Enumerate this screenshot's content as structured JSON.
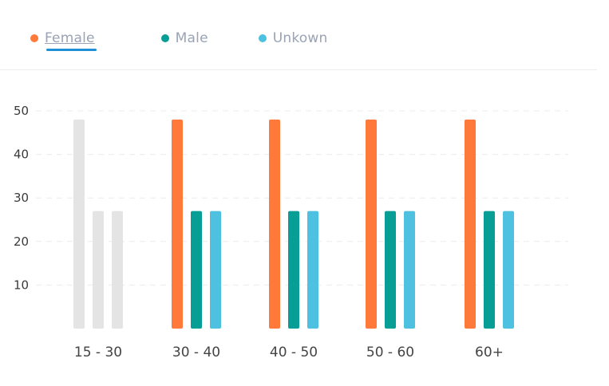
{
  "legend": {
    "items": [
      {
        "label": "Female",
        "color": "#ff7a3a",
        "active": true
      },
      {
        "label": "Male",
        "color": "#079e95",
        "active": false
      },
      {
        "label": "Unkown",
        "color": "#4ec0e0",
        "active": false
      }
    ]
  },
  "chart_data": {
    "type": "bar",
    "categories": [
      "15 - 30",
      "30 - 40",
      "40 - 50",
      "50 - 60",
      "60+"
    ],
    "series": [
      {
        "name": "Female",
        "color": "#ff7a3a",
        "values": [
          48,
          48,
          48,
          48,
          48
        ]
      },
      {
        "name": "Male",
        "color": "#079e95",
        "values": [
          27,
          27,
          27,
          27,
          27
        ]
      },
      {
        "name": "Unkown",
        "color": "#4ec0e0",
        "values": [
          27,
          27,
          27,
          27,
          27
        ]
      }
    ],
    "highlighted_category_index": 0,
    "highlight_color": "#e4e4e4",
    "yticks": [
      10,
      20,
      30,
      40,
      50
    ],
    "ylim": [
      0,
      50
    ],
    "grid": true,
    "legend_position": "top-left",
    "title": "",
    "xlabel": "",
    "ylabel": ""
  }
}
